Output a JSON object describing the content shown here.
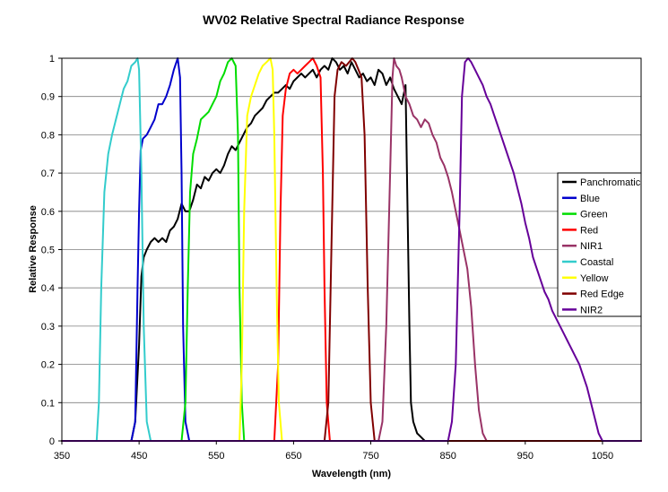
{
  "chart_data": {
    "type": "line",
    "title": "WV02 Relative Spectral Radiance Response",
    "xlabel": "Wavelength (nm)",
    "ylabel": "Relative Response",
    "xlim": [
      350,
      1100
    ],
    "ylim": [
      0,
      1
    ],
    "x_ticks": [
      "350",
      "450",
      "550",
      "650",
      "750",
      "850",
      "950",
      "1050"
    ],
    "y_ticks": [
      "0",
      "0.1",
      "0.2",
      "0.3",
      "0.4",
      "0.5",
      "0.6",
      "0.7",
      "0.8",
      "0.9",
      "1"
    ],
    "grid": true,
    "legend_position": "right",
    "series": [
      {
        "name": "Panchromatic",
        "color": "#000000",
        "x": [
          440,
          445,
          450,
          453,
          456,
          460,
          465,
          470,
          475,
          480,
          485,
          490,
          495,
          500,
          505,
          510,
          515,
          520,
          525,
          530,
          535,
          540,
          545,
          550,
          555,
          560,
          565,
          570,
          575,
          580,
          585,
          590,
          595,
          600,
          605,
          610,
          615,
          620,
          625,
          630,
          635,
          640,
          645,
          650,
          655,
          660,
          665,
          670,
          675,
          680,
          685,
          690,
          695,
          700,
          705,
          710,
          715,
          720,
          725,
          730,
          735,
          740,
          745,
          750,
          755,
          760,
          765,
          770,
          775,
          780,
          785,
          790,
          795,
          800,
          802,
          805,
          810,
          815,
          820
        ],
        "y": [
          0,
          0.05,
          0.25,
          0.43,
          0.48,
          0.5,
          0.52,
          0.53,
          0.52,
          0.53,
          0.52,
          0.55,
          0.56,
          0.58,
          0.62,
          0.6,
          0.6,
          0.63,
          0.67,
          0.66,
          0.69,
          0.68,
          0.7,
          0.71,
          0.7,
          0.72,
          0.75,
          0.77,
          0.76,
          0.78,
          0.8,
          0.82,
          0.83,
          0.85,
          0.86,
          0.87,
          0.89,
          0.9,
          0.91,
          0.91,
          0.92,
          0.93,
          0.92,
          0.94,
          0.95,
          0.96,
          0.95,
          0.96,
          0.97,
          0.95,
          0.97,
          0.98,
          0.97,
          1.0,
          0.99,
          0.97,
          0.98,
          0.96,
          0.99,
          0.97,
          0.95,
          0.96,
          0.94,
          0.95,
          0.93,
          0.97,
          0.96,
          0.93,
          0.95,
          0.92,
          0.9,
          0.88,
          0.93,
          0.3,
          0.1,
          0.05,
          0.02,
          0.01,
          0
        ]
      },
      {
        "name": "Blue",
        "color": "#0000cc",
        "x": [
          440,
          445,
          448,
          450,
          452,
          455,
          460,
          465,
          470,
          475,
          480,
          485,
          490,
          495,
          500,
          503,
          505,
          507,
          510,
          515
        ],
        "y": [
          0,
          0.05,
          0.4,
          0.6,
          0.76,
          0.79,
          0.8,
          0.82,
          0.84,
          0.88,
          0.88,
          0.9,
          0.93,
          0.97,
          1.0,
          0.95,
          0.7,
          0.3,
          0.05,
          0
        ]
      },
      {
        "name": "Green",
        "color": "#00dd00",
        "x": [
          505,
          510,
          513,
          516,
          520,
          525,
          530,
          535,
          540,
          545,
          550,
          555,
          560,
          565,
          570,
          575,
          578,
          580,
          583,
          586
        ],
        "y": [
          0,
          0.1,
          0.4,
          0.65,
          0.75,
          0.79,
          0.84,
          0.85,
          0.86,
          0.88,
          0.9,
          0.94,
          0.96,
          0.99,
          1.0,
          0.98,
          0.8,
          0.4,
          0.1,
          0
        ]
      },
      {
        "name": "Red",
        "color": "#ff0000",
        "x": [
          625,
          630,
          633,
          636,
          640,
          645,
          650,
          655,
          660,
          665,
          670,
          675,
          680,
          685,
          688,
          690,
          693,
          697
        ],
        "y": [
          0,
          0.2,
          0.6,
          0.85,
          0.92,
          0.96,
          0.97,
          0.96,
          0.97,
          0.98,
          0.99,
          1.0,
          0.98,
          0.95,
          0.7,
          0.4,
          0.1,
          0
        ]
      },
      {
        "name": "NIR1",
        "color": "#993366",
        "x": [
          760,
          765,
          770,
          775,
          778,
          780,
          783,
          787,
          790,
          795,
          800,
          805,
          810,
          815,
          820,
          825,
          830,
          835,
          840,
          845,
          850,
          855,
          860,
          865,
          870,
          875,
          880,
          885,
          890,
          895,
          900
        ],
        "y": [
          0,
          0.05,
          0.3,
          0.7,
          0.95,
          1.0,
          0.98,
          0.97,
          0.95,
          0.9,
          0.88,
          0.85,
          0.84,
          0.82,
          0.84,
          0.83,
          0.8,
          0.78,
          0.74,
          0.72,
          0.69,
          0.65,
          0.6,
          0.55,
          0.5,
          0.45,
          0.35,
          0.2,
          0.08,
          0.02,
          0
        ]
      },
      {
        "name": "Coastal",
        "color": "#33cccc",
        "x": [
          395,
          398,
          401,
          405,
          410,
          415,
          420,
          425,
          430,
          435,
          440,
          445,
          448,
          450,
          453,
          456,
          460,
          465
        ],
        "y": [
          0,
          0.1,
          0.4,
          0.65,
          0.75,
          0.8,
          0.84,
          0.88,
          0.92,
          0.94,
          0.98,
          0.99,
          1.0,
          0.97,
          0.7,
          0.3,
          0.05,
          0
        ]
      },
      {
        "name": "Yellow",
        "color": "#ffff00",
        "x": [
          580,
          583,
          586,
          590,
          595,
          600,
          605,
          610,
          615,
          620,
          623,
          625,
          628,
          631,
          635
        ],
        "y": [
          0,
          0.2,
          0.6,
          0.85,
          0.9,
          0.93,
          0.96,
          0.98,
          0.99,
          1.0,
          0.97,
          0.8,
          0.4,
          0.1,
          0
        ]
      },
      {
        "name": "Red Edge",
        "color": "#800000",
        "x": [
          690,
          695,
          699,
          703,
          707,
          712,
          718,
          722,
          726,
          730,
          734,
          738,
          742,
          746,
          750,
          755
        ],
        "y": [
          0,
          0.1,
          0.5,
          0.9,
          0.97,
          0.99,
          0.98,
          0.99,
          1.0,
          0.99,
          0.97,
          0.95,
          0.8,
          0.4,
          0.1,
          0
        ]
      },
      {
        "name": "NIR2",
        "color": "#660099",
        "x": [
          850,
          855,
          860,
          865,
          868,
          872,
          876,
          880,
          885,
          890,
          895,
          900,
          905,
          910,
          915,
          920,
          925,
          930,
          935,
          940,
          945,
          950,
          955,
          960,
          965,
          970,
          975,
          980,
          985,
          990,
          995,
          1000,
          1005,
          1010,
          1015,
          1020,
          1025,
          1030,
          1035,
          1040,
          1045,
          1050
        ],
        "y": [
          0,
          0.05,
          0.2,
          0.6,
          0.9,
          0.99,
          1.0,
          0.99,
          0.97,
          0.95,
          0.93,
          0.9,
          0.88,
          0.85,
          0.82,
          0.79,
          0.76,
          0.73,
          0.7,
          0.66,
          0.62,
          0.57,
          0.53,
          0.48,
          0.45,
          0.42,
          0.39,
          0.37,
          0.34,
          0.32,
          0.3,
          0.28,
          0.26,
          0.24,
          0.22,
          0.2,
          0.17,
          0.14,
          0.1,
          0.06,
          0.02,
          0
        ]
      }
    ]
  }
}
